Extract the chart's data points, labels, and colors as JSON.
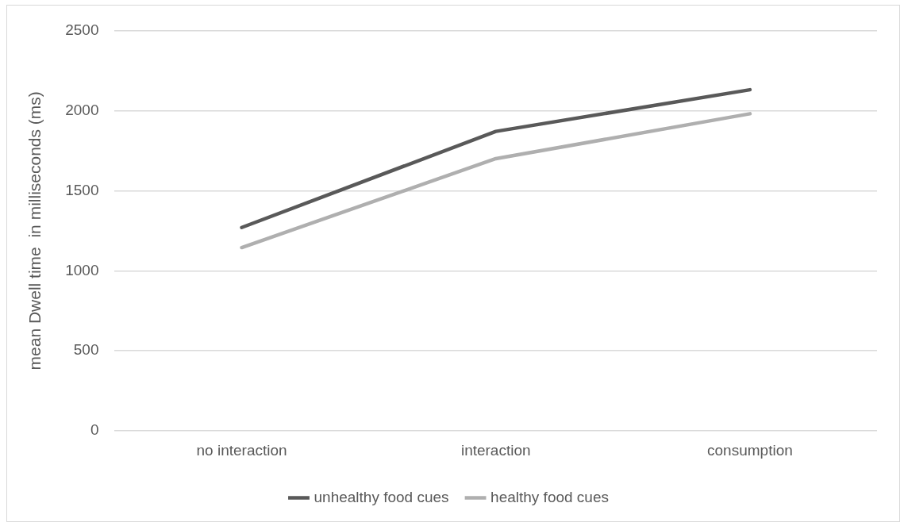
{
  "chart_data": {
    "type": "line",
    "ylabel": "mean Dwell time  in milliseconds (ms)",
    "categories": [
      "no interaction",
      "interaction",
      "consumption"
    ],
    "series": [
      {
        "name": "unhealthy food cues",
        "color": "#595959",
        "values": [
          1270,
          1870,
          2130
        ]
      },
      {
        "name": "healthy food cues",
        "color": "#afafaf",
        "values": [
          1145,
          1700,
          1980
        ]
      }
    ],
    "ylim": [
      0,
      2500
    ],
    "yticks": [
      0,
      500,
      1000,
      1500,
      2000,
      2500
    ],
    "grid": "y",
    "legend": "bottom",
    "marker": "none",
    "line_style": "solid"
  }
}
